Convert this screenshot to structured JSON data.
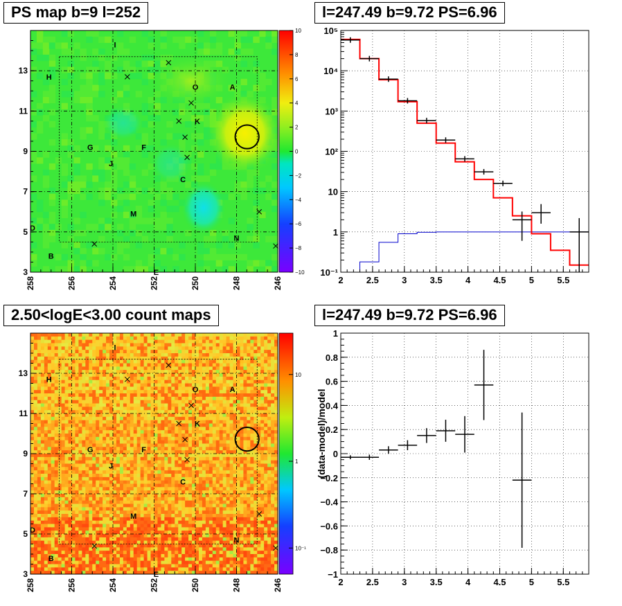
{
  "panels": {
    "ps_map": {
      "title": "PS map b=9 l=252"
    },
    "spectrum": {
      "title": "l=247.49 b=9.72 PS=6.96"
    },
    "count_map": {
      "title": "2.50<logE<3.00 count maps"
    },
    "residual": {
      "title": "l=247.49 b=9.72 PS=6.96"
    }
  },
  "chart_data": [
    {
      "type": "heatmap",
      "title": "PS map b=9 l=252",
      "xlabel": "",
      "ylabel": "",
      "xlim": [
        258,
        246
      ],
      "ylim": [
        3,
        15
      ],
      "x_ticks": [
        "258",
        "256",
        "254",
        "252",
        "250",
        "248",
        "246"
      ],
      "y_ticks": [
        "3",
        "5",
        "7",
        "9",
        "11",
        "13"
      ],
      "colorbar_ticks": [
        "10",
        "8",
        "6",
        "4",
        "2",
        "0",
        "−2",
        "−4",
        "−6",
        "−8",
        "−10"
      ],
      "colorbar_range": [
        -10,
        10
      ],
      "grid": true,
      "labels": [
        {
          "text": "I",
          "l": 253.9,
          "b": 14.3
        },
        {
          "text": "H",
          "l": 257.1,
          "b": 12.7
        },
        {
          "text": "O",
          "l": 250.0,
          "b": 12.2
        },
        {
          "text": "A",
          "l": 248.2,
          "b": 12.2
        },
        {
          "text": "K",
          "l": 249.9,
          "b": 10.5
        },
        {
          "text": "G",
          "l": 255.1,
          "b": 9.2
        },
        {
          "text": "F",
          "l": 252.5,
          "b": 9.2
        },
        {
          "text": "J",
          "l": 254.1,
          "b": 8.4
        },
        {
          "text": "C",
          "l": 250.6,
          "b": 7.6
        },
        {
          "text": "M",
          "l": 253.0,
          "b": 5.9
        },
        {
          "text": "D",
          "l": 257.9,
          "b": 5.2
        },
        {
          "text": "N",
          "l": 248.0,
          "b": 4.7
        },
        {
          "text": "B",
          "l": 257.0,
          "b": 3.8
        },
        {
          "text": "E",
          "l": 251.9,
          "b": 3.0
        }
      ],
      "crosses": [
        [
          251.3,
          13.4
        ],
        [
          253.3,
          12.7
        ],
        [
          250.2,
          11.4
        ],
        [
          250.8,
          10.5
        ],
        [
          250.5,
          9.7
        ],
        [
          250.4,
          8.7
        ],
        [
          246.9,
          6.0
        ],
        [
          254.9,
          4.4
        ],
        [
          246.1,
          4.3
        ]
      ],
      "circle": {
        "l": 247.49,
        "b": 9.72,
        "r": 0.5
      }
    },
    {
      "type": "line",
      "title": "l=247.49 b=9.72 PS=6.96",
      "xlabel": "",
      "ylabel": "",
      "xlim": [
        2,
        5.9
      ],
      "ylim": [
        0.1,
        100000
      ],
      "log_y": true,
      "x_ticks": [
        "2",
        "2.5",
        "3",
        "3.5",
        "4",
        "4.5",
        "5",
        "5.5"
      ],
      "y_ticks": [
        "10⁻¹",
        "1",
        "10",
        "10²",
        "10³",
        "10⁴",
        "10⁵"
      ],
      "grid": true,
      "data_points": [
        {
          "x": 2.15,
          "y": 58000
        },
        {
          "x": 2.45,
          "y": 20000
        },
        {
          "x": 2.75,
          "y": 6200
        },
        {
          "x": 3.05,
          "y": 1800
        },
        {
          "x": 3.35,
          "y": 580
        },
        {
          "x": 3.65,
          "y": 190
        },
        {
          "x": 3.95,
          "y": 65
        },
        {
          "x": 4.25,
          "y": 31
        },
        {
          "x": 4.55,
          "y": 16
        },
        {
          "x": 4.85,
          "y": 2.0,
          "ylo": 0.6,
          "yhi": 3.2
        },
        {
          "x": 5.15,
          "y": 3.0,
          "ylo": 1.6,
          "yhi": 4.9
        },
        {
          "x": 5.75,
          "y": 1.0,
          "ylo": 0.1,
          "yhi": 2.2
        }
      ],
      "series": [
        {
          "kind": "total_model",
          "edges": [
            2.0,
            2.3,
            2.6,
            2.9,
            3.2,
            3.5,
            3.8,
            4.1,
            4.4,
            4.7,
            5.0,
            5.3,
            5.6,
            5.9
          ],
          "values": [
            60000,
            20000,
            6000,
            1700,
            500,
            160,
            55,
            20,
            7,
            2.5,
            0.9,
            0.35,
            0.15
          ]
        },
        {
          "kind": "point_source",
          "edges": [
            2.0,
            2.3,
            2.6,
            2.9,
            3.2,
            3.5,
            3.8,
            4.1,
            4.4,
            4.7,
            5.0,
            5.3,
            5.6,
            5.9
          ],
          "values": [
            0.1,
            0.18,
            0.55,
            0.9,
            0.98,
            1.0,
            1.0,
            1.0,
            1.0,
            1.0,
            1.0,
            1.0,
            1.0
          ]
        }
      ],
      "colors": {
        "data": "#000000",
        "model": "#ff0000",
        "source": "#0000cc"
      }
    },
    {
      "type": "heatmap",
      "title": "2.50<logE<3.00 count maps",
      "xlabel": "",
      "ylabel": "",
      "xlim": [
        258,
        246
      ],
      "ylim": [
        3,
        15
      ],
      "x_ticks": [
        "258",
        "256",
        "254",
        "252",
        "250",
        "248",
        "246"
      ],
      "y_ticks": [
        "3",
        "5",
        "7",
        "9",
        "11",
        "13"
      ],
      "colorbar_ticks": [
        "10",
        "1",
        "10⁻¹"
      ],
      "log_scale": true,
      "grid": true
    },
    {
      "type": "scatter",
      "title": "l=247.49 b=9.72 PS=6.96",
      "xlabel": "",
      "ylabel": "(data-model)/model",
      "xlim": [
        2,
        5.9
      ],
      "ylim": [
        -1,
        1
      ],
      "x_ticks": [
        "2",
        "2.5",
        "3",
        "3.5",
        "4",
        "4.5",
        "5",
        "5.5"
      ],
      "y_ticks": [
        "−1",
        "−0.8",
        "−0.6",
        "−0.4",
        "−0.2",
        "0",
        "0.2",
        "0.4",
        "0.6",
        "0.8",
        "1"
      ],
      "grid": true,
      "points": [
        {
          "x": 2.15,
          "y": -0.03,
          "xerr": 0.15,
          "yerr": 0.005
        },
        {
          "x": 2.45,
          "y": -0.03,
          "xerr": 0.15,
          "yerr": 0.01
        },
        {
          "x": 2.75,
          "y": 0.03,
          "xerr": 0.15,
          "yerr": 0.02
        },
        {
          "x": 3.05,
          "y": 0.07,
          "xerr": 0.15,
          "yerr": 0.03
        },
        {
          "x": 3.35,
          "y": 0.15,
          "xerr": 0.15,
          "yerr": 0.05
        },
        {
          "x": 3.65,
          "y": 0.19,
          "xerr": 0.15,
          "yerr": 0.08
        },
        {
          "x": 3.95,
          "y": 0.16,
          "xerr": 0.15,
          "yerr": 0.14
        },
        {
          "x": 4.25,
          "y": 0.57,
          "xerr": 0.15,
          "yerr": 0.28
        },
        {
          "x": 4.85,
          "y": -0.22,
          "xerr": 0.15,
          "yerr": 0.55
        }
      ]
    }
  ]
}
